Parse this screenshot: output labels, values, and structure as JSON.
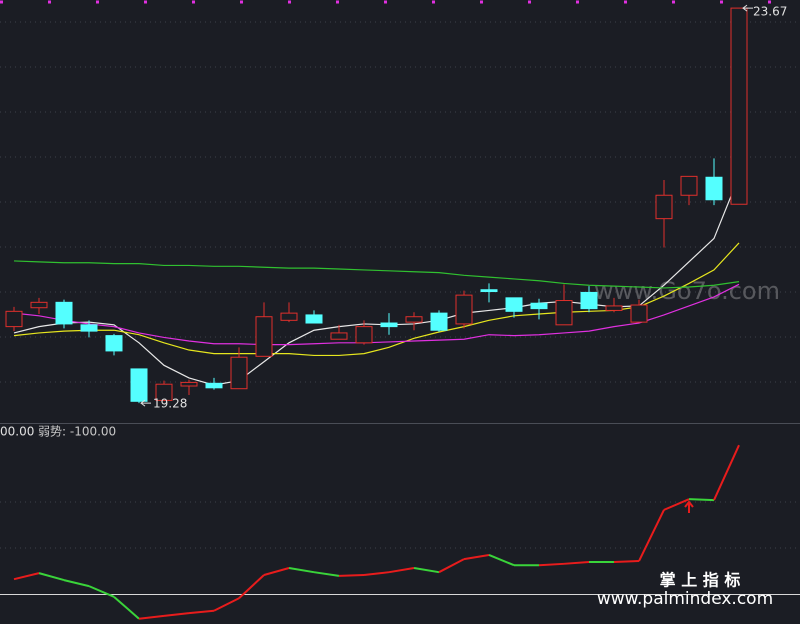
{
  "chart_data": [
    {
      "type": "candlestick",
      "ylim": [
        19.07,
        23.76
      ],
      "up_color": "#e0302c",
      "down_color": "#54ffff",
      "candles": {
        "open": [
          20.13,
          20.34,
          20.4,
          20.15,
          20.03,
          19.66,
          19.31,
          19.47,
          19.5,
          19.44,
          19.8,
          20.2,
          20.26,
          19.99,
          19.95,
          20.17,
          20.18,
          20.28,
          20.16,
          20.54,
          20.45,
          20.39,
          20.15,
          20.51,
          20.31,
          20.18,
          21.33,
          21.59,
          21.79,
          21.49
        ],
        "high": [
          20.35,
          20.45,
          20.43,
          20.2,
          20.05,
          19.66,
          19.53,
          19.54,
          19.56,
          19.9,
          20.4,
          20.4,
          20.31,
          20.15,
          20.2,
          20.28,
          20.29,
          20.31,
          20.53,
          20.61,
          20.45,
          20.44,
          20.6,
          20.58,
          20.45,
          20.43,
          21.76,
          21.8,
          22.0,
          23.67
        ],
        "low": [
          20.08,
          20.27,
          20.11,
          20.01,
          19.81,
          19.28,
          19.31,
          19.37,
          19.43,
          19.44,
          19.8,
          20.18,
          20.17,
          19.99,
          19.93,
          20.04,
          20.09,
          20.07,
          20.11,
          20.4,
          20.23,
          20.21,
          20.15,
          20.29,
          20.29,
          20.18,
          21.01,
          21.48,
          21.48,
          21.49
        ],
        "close": [
          20.3,
          20.4,
          20.16,
          20.08,
          19.86,
          19.3,
          19.49,
          19.51,
          19.45,
          19.79,
          20.24,
          20.28,
          20.17,
          20.06,
          20.13,
          20.13,
          20.24,
          20.09,
          20.48,
          20.52,
          20.3,
          20.33,
          20.42,
          20.33,
          20.36,
          20.37,
          21.59,
          21.8,
          21.54,
          23.67
        ]
      },
      "series": [
        {
          "color": "#e8e8e8",
          "values": [
            20.06,
            20.13,
            20.17,
            20.18,
            20.15,
            19.95,
            19.7,
            19.56,
            19.48,
            19.53,
            19.74,
            19.95,
            20.09,
            20.13,
            20.16,
            20.15,
            20.16,
            20.2,
            20.28,
            20.31,
            20.34,
            20.39,
            20.41,
            20.38,
            20.35,
            20.36,
            20.59,
            20.85,
            21.11,
            21.8
          ]
        },
        {
          "color": "#e6e61e",
          "values": [
            20.03,
            20.06,
            20.08,
            20.09,
            20.09,
            20.04,
            19.95,
            19.87,
            19.83,
            19.83,
            19.83,
            19.83,
            19.81,
            19.81,
            19.83,
            19.9,
            20.0,
            20.07,
            20.13,
            20.2,
            20.25,
            20.27,
            20.29,
            20.3,
            20.31,
            20.35,
            20.47,
            20.61,
            20.76,
            21.06
          ]
        },
        {
          "color": "#e030e0",
          "values": [
            20.28,
            20.25,
            20.2,
            20.16,
            20.13,
            20.06,
            20.01,
            19.97,
            19.94,
            19.94,
            19.93,
            19.93,
            19.94,
            19.95,
            19.95,
            19.96,
            19.97,
            19.98,
            19.99,
            20.04,
            20.03,
            20.04,
            20.06,
            20.08,
            20.13,
            20.17,
            20.26,
            20.36,
            20.46,
            20.6
          ]
        },
        {
          "color": "#30c030",
          "values": [
            20.86,
            20.85,
            20.84,
            20.84,
            20.83,
            20.83,
            20.81,
            20.81,
            20.8,
            20.8,
            20.79,
            20.78,
            20.78,
            20.77,
            20.76,
            20.75,
            20.74,
            20.73,
            20.7,
            20.68,
            20.66,
            20.64,
            20.61,
            20.59,
            20.58,
            20.57,
            20.56,
            20.57,
            20.59,
            20.63
          ]
        }
      ]
    },
    {
      "type": "line",
      "ylim": [
        -163.4,
        266.6
      ],
      "legend": "00.00",
      "weak_label": "弱势: -100.00",
      "weak_level": -100,
      "up_color": "#e81c1c",
      "down_color": "#3ad43a",
      "series": [
        {
          "values": [
            -67,
            -54,
            -69,
            -82,
            -105,
            -152,
            -146,
            -140,
            -135,
            -108,
            -58,
            -43,
            -52,
            -60,
            -58,
            -52,
            -43,
            -52,
            -24,
            -15,
            -37,
            -37,
            -34,
            -30,
            -30,
            -28,
            82,
            105,
            103,
            221
          ]
        }
      ]
    }
  ],
  "watermarks": {
    "site": "www.Go7o.com",
    "brand": "掌 上 指 标",
    "url": "www.palmindex.com"
  }
}
